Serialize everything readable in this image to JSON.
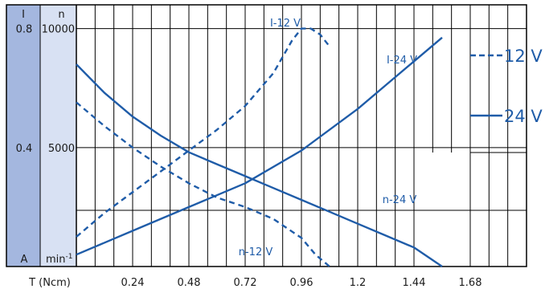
{
  "chart_data": {
    "type": "line",
    "xlabel": "T (Ncm)",
    "x_ticks": [
      "0.24",
      "0.48",
      "0.72",
      "0.96",
      "1.2",
      "1.44",
      "1.68"
    ],
    "xlim": [
      0,
      1.92
    ],
    "axis_I": {
      "header": "I",
      "unit": "A",
      "ticks": [
        "0.8",
        "0.4"
      ],
      "ylim": [
        0,
        0.88
      ]
    },
    "axis_n": {
      "header": "n",
      "unit": "min",
      "unit_sup": "-1",
      "ticks": [
        "10000",
        "5000"
      ],
      "ylim": [
        0,
        11000
      ]
    },
    "grid": true,
    "legend_placement": "right",
    "legend": [
      {
        "label": "12 V",
        "style": "dashed"
      },
      {
        "label": "24 V",
        "style": "solid"
      }
    ],
    "series": [
      {
        "name": "I-12 V",
        "axis": "I",
        "style": "dashed",
        "x": [
          0,
          0.12,
          0.24,
          0.36,
          0.48,
          0.6,
          0.72,
          0.84,
          0.92,
          0.96,
          1.0,
          1.04,
          1.08
        ],
        "y": [
          0.1,
          0.18,
          0.25,
          0.32,
          0.39,
          0.46,
          0.54,
          0.65,
          0.76,
          0.8,
          0.8,
          0.78,
          0.74
        ]
      },
      {
        "name": "I-24 V",
        "axis": "I",
        "style": "solid",
        "x": [
          0,
          0.24,
          0.48,
          0.72,
          0.96,
          1.2,
          1.32,
          1.44,
          1.56
        ],
        "y": [
          0.04,
          0.12,
          0.2,
          0.28,
          0.39,
          0.53,
          0.61,
          0.69,
          0.77
        ]
      },
      {
        "name": "n-12 V",
        "axis": "n",
        "style": "dashed",
        "x": [
          0,
          0.12,
          0.24,
          0.36,
          0.48,
          0.6,
          0.72,
          0.84,
          0.96,
          1.02,
          1.08
        ],
        "y": [
          6900,
          5900,
          5000,
          4200,
          3500,
          2900,
          2500,
          2000,
          1200,
          500,
          0
        ]
      },
      {
        "name": "n-24 V",
        "axis": "n",
        "style": "solid",
        "x": [
          0,
          0.12,
          0.24,
          0.36,
          0.48,
          0.6,
          0.72,
          0.84,
          0.96,
          1.08,
          1.2,
          1.32,
          1.44,
          1.56
        ],
        "y": [
          8500,
          7300,
          6300,
          5500,
          4800,
          4300,
          3800,
          3300,
          2800,
          2300,
          1800,
          1300,
          800,
          0
        ]
      }
    ],
    "series_labels": [
      "I-12 V",
      "I-24 V",
      "n-12 V",
      "n-24 V"
    ],
    "colors": {
      "line": "#1f5ca8",
      "axis_I_band": "#a4b7df",
      "axis_n_band": "#d8e1f3",
      "grid": "#000000"
    }
  }
}
